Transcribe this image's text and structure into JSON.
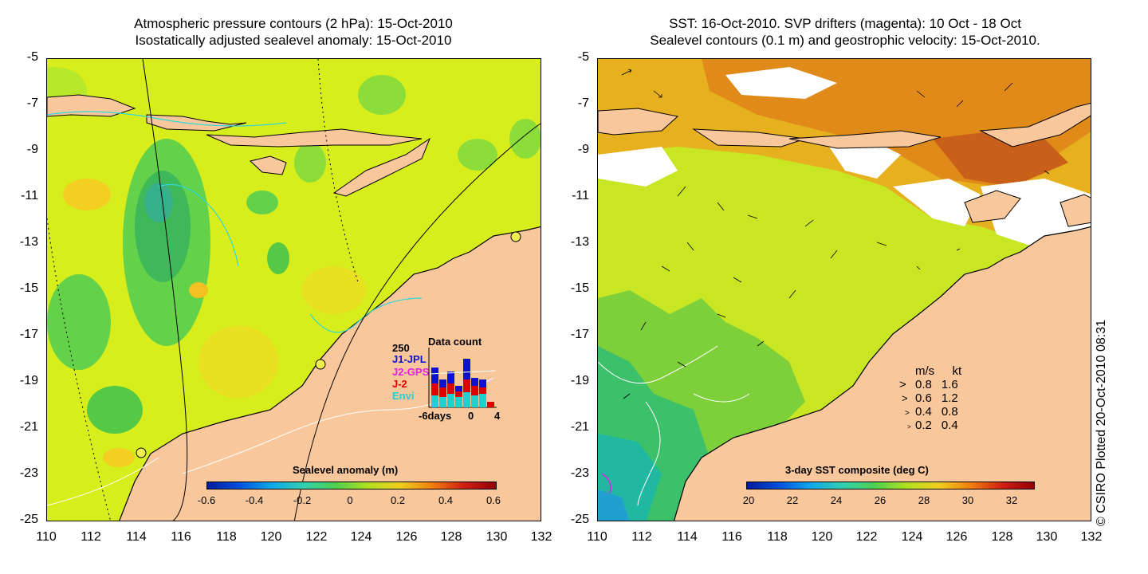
{
  "left": {
    "title_line1": "Atmospheric pressure contours (2 hPa): 15-Oct-2010",
    "title_line2": "Isostatically adjusted sealevel anomaly: 15-Oct-2010",
    "colorbar_title": "Sealevel anomaly (m)",
    "colorbar_labels": [
      "-0.6",
      "-0.4",
      "-0.2",
      "0",
      "0.2",
      "0.4",
      "0.6"
    ],
    "datacount": {
      "title": "Data count",
      "ymax": "250",
      "satellites": [
        "J1-JPL",
        "J2-GPS",
        "J-2",
        "Envi"
      ],
      "satellite_colors": [
        "#1010d0",
        "#e020e0",
        "#e00000",
        "#20d0d0"
      ],
      "x_labels": [
        "-6days",
        "0",
        "4"
      ]
    }
  },
  "right": {
    "title_line1": "SST: 16-Oct-2010. SVP drifters (magenta): 10 Oct - 18 Oct",
    "title_line2": "Sealevel contours (0.1 m) and geostrophic velocity: 15-Oct-2010.",
    "colorbar_title": "3-day SST composite (deg C)",
    "colorbar_labels": [
      "20",
      "22",
      "24",
      "26",
      "28",
      "30",
      "32"
    ],
    "velocity_legend": {
      "header_ms": "m/s",
      "header_kt": "kt",
      "rows": [
        {
          "ms": "0.8",
          "kt": "1.6"
        },
        {
          "ms": "0.6",
          "kt": "1.2"
        },
        {
          "ms": "0.4",
          "kt": "0.8"
        },
        {
          "ms": "0.2",
          "kt": "0.4"
        }
      ]
    }
  },
  "axes": {
    "y_labels": [
      "-5",
      "-7",
      "-9",
      "-11",
      "-13",
      "-15",
      "-17",
      "-19",
      "-21",
      "-23",
      "-25"
    ],
    "x_labels": [
      "110",
      "112",
      "114",
      "116",
      "118",
      "120",
      "122",
      "124",
      "126",
      "128",
      "130",
      "132"
    ]
  },
  "credit": "© CSIRO Plotted 20-Oct-2010 08:31",
  "colors": {
    "land": "#f9c79c",
    "sea_anomaly_base": "#d4ef1a",
    "sea_anomaly_green": "#4cc93c",
    "sst_base": "#c8e623",
    "sst_warm": "#e08a1a"
  }
}
